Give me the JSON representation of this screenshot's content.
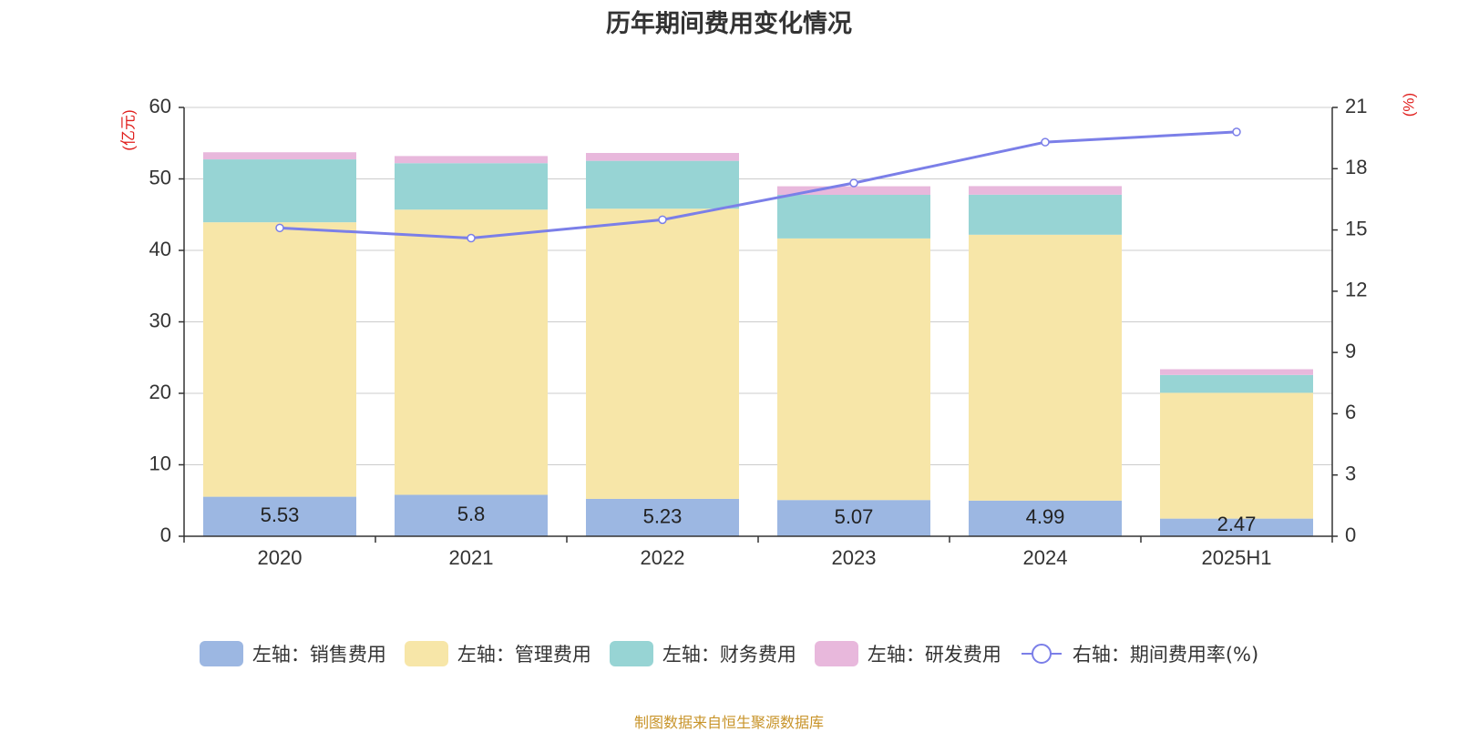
{
  "title": "历年期间费用变化情况",
  "footer": "制图数据来自恒生聚源数据库",
  "chart_data": {
    "type": "bar",
    "stacked": true,
    "categories": [
      "2020",
      "2021",
      "2022",
      "2023",
      "2024",
      "2025H1"
    ],
    "left_axis": {
      "label": "(亿元)",
      "ylim": [
        0,
        60
      ],
      "ticks": [
        0,
        10,
        20,
        30,
        40,
        50,
        60
      ]
    },
    "right_axis": {
      "label": "(%)",
      "ylim": [
        0,
        21
      ],
      "ticks": [
        0,
        3,
        6,
        9,
        12,
        15,
        18,
        21
      ]
    },
    "grid": true,
    "legend_position": "bottom",
    "series": [
      {
        "name": "左轴：销售费用",
        "axis": "left",
        "type": "bar",
        "color": "#9cb7e2",
        "values": [
          5.53,
          5.8,
          5.23,
          5.07,
          4.99,
          2.47
        ],
        "labels_shown": true
      },
      {
        "name": "左轴：管理费用",
        "axis": "left",
        "type": "bar",
        "color": "#f7e6a8",
        "values": [
          38.4,
          39.9,
          40.6,
          36.6,
          37.2,
          17.6
        ]
      },
      {
        "name": "左轴：财务费用",
        "axis": "left",
        "type": "bar",
        "color": "#97d4d4",
        "values": [
          8.8,
          6.5,
          6.7,
          6.1,
          5.6,
          2.5
        ]
      },
      {
        "name": "左轴：研发费用",
        "axis": "left",
        "type": "bar",
        "color": "#e8b8dc",
        "values": [
          1.0,
          1.0,
          1.1,
          1.2,
          1.2,
          0.8
        ]
      },
      {
        "name": "右轴：期间费用率(%)",
        "axis": "right",
        "type": "line",
        "color": "#7b7fe8",
        "values": [
          15.1,
          14.6,
          15.5,
          17.3,
          19.3,
          19.8
        ]
      }
    ]
  }
}
